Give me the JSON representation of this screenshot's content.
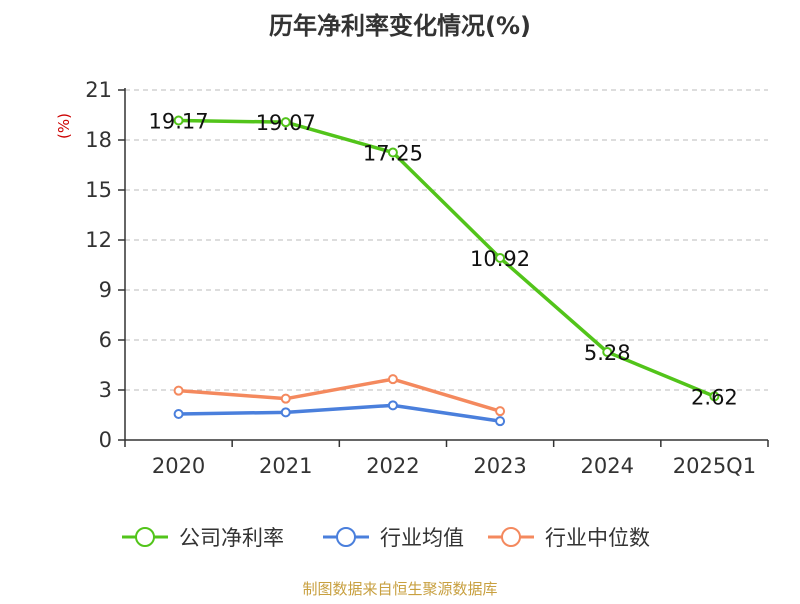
{
  "chart_data": {
    "type": "line",
    "title": "历年净利率变化情况(%)",
    "ylabel": "(%)",
    "xlabel": "",
    "categories": [
      "2020",
      "2021",
      "2022",
      "2023",
      "2024",
      "2025Q1"
    ],
    "ylim": [
      0,
      21
    ],
    "yticks": [
      0,
      3,
      6,
      9,
      12,
      15,
      18,
      21
    ],
    "grid": true,
    "legend_position": "bottom",
    "series": [
      {
        "name": "公司净利率",
        "color": "#52c41a",
        "show_labels": true,
        "values": [
          19.17,
          19.07,
          17.25,
          10.92,
          5.28,
          2.62
        ]
      },
      {
        "name": "行业均值",
        "color": "#4a7fdc",
        "show_labels": false,
        "values": [
          1.56,
          1.66,
          2.08,
          1.13,
          null,
          null
        ]
      },
      {
        "name": "行业中位数",
        "color": "#f4895e",
        "show_labels": false,
        "values": [
          2.96,
          2.48,
          3.65,
          1.73,
          null,
          null
        ]
      }
    ],
    "colors": {
      "axis": "#333333",
      "grid": "#bbbbbb",
      "ylabel": "#cc0000"
    }
  },
  "source": "制图数据来自恒生聚源数据库",
  "source_color": "#c8a040"
}
